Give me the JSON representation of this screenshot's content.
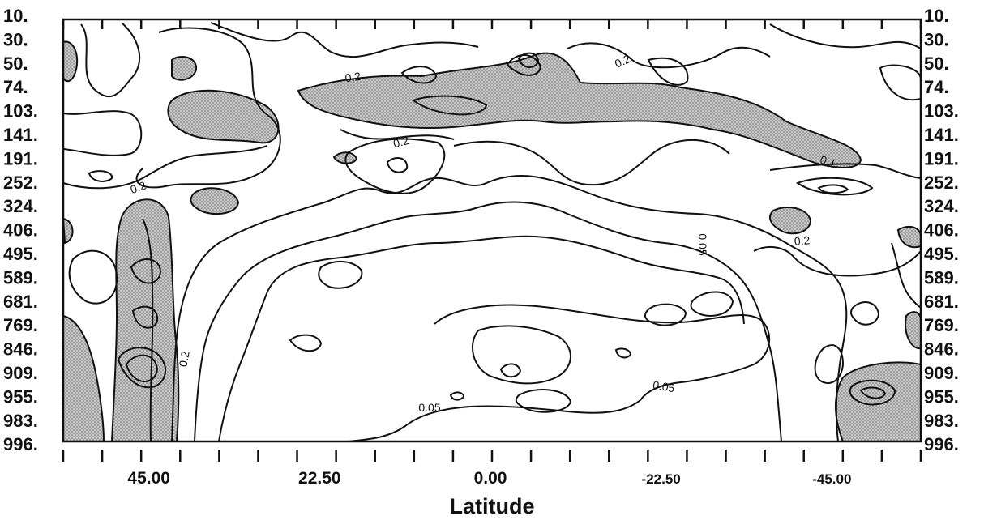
{
  "chart_data": {
    "type": "contour",
    "xlabel": "Latitude",
    "x_ticks": [
      "45.00",
      "22.50",
      "0.00",
      "-22.50",
      "-45.00"
    ],
    "y_ticks": [
      "10.",
      "30.",
      "50.",
      "74.",
      "103.",
      "141.",
      "191.",
      "252.",
      "324.",
      "406.",
      "495.",
      "589.",
      "681.",
      "769.",
      "846.",
      "909.",
      "955.",
      "983.",
      "996."
    ],
    "contour_labels": [
      "0.2",
      "0.2",
      "0.2",
      "0.2",
      "0.1",
      "0.2",
      "0.05",
      "0.2",
      "0.2",
      "0.05",
      "0.05"
    ],
    "shading": "stippled gray regions",
    "grid": false
  }
}
